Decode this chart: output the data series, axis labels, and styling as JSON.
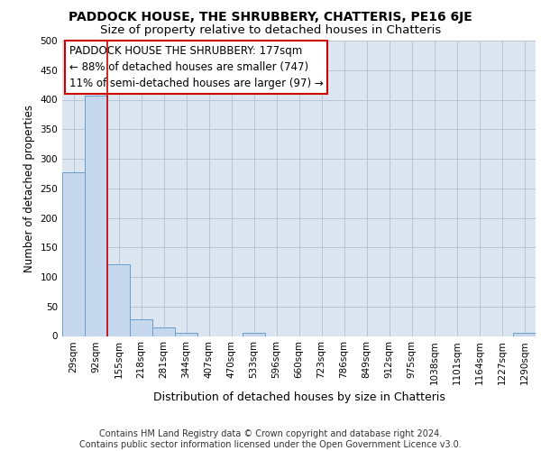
{
  "title": "PADDOCK HOUSE, THE SHRUBBERY, CHATTERIS, PE16 6JE",
  "subtitle": "Size of property relative to detached houses in Chatteris",
  "xlabel": "Distribution of detached houses by size in Chatteris",
  "ylabel": "Number of detached properties",
  "categories": [
    "29sqm",
    "92sqm",
    "155sqm",
    "218sqm",
    "281sqm",
    "344sqm",
    "407sqm",
    "470sqm",
    "533sqm",
    "596sqm",
    "660sqm",
    "723sqm",
    "786sqm",
    "849sqm",
    "912sqm",
    "975sqm",
    "1038sqm",
    "1101sqm",
    "1164sqm",
    "1227sqm",
    "1290sqm"
  ],
  "values": [
    277,
    407,
    121,
    28,
    14,
    5,
    0,
    0,
    5,
    0,
    0,
    0,
    0,
    0,
    0,
    0,
    0,
    0,
    0,
    0,
    5
  ],
  "bar_color": "#c5d8ed",
  "bar_edge_color": "#6a9ec9",
  "ylim": [
    0,
    500
  ],
  "yticks": [
    0,
    50,
    100,
    150,
    200,
    250,
    300,
    350,
    400,
    450,
    500
  ],
  "grid_color": "#b0bfd0",
  "background_color": "#dce6f1",
  "property_line_index": 2,
  "annotation_line1": "PADDOCK HOUSE THE SHRUBBERY: 177sqm",
  "annotation_line2": "← 88% of detached houses are smaller (747)",
  "annotation_line3": "11% of semi-detached houses are larger (97) →",
  "annotation_box_color": "#ffffff",
  "annotation_box_edge": "#cc0000",
  "property_line_color": "#cc0000",
  "footer_line1": "Contains HM Land Registry data © Crown copyright and database right 2024.",
  "footer_line2": "Contains public sector information licensed under the Open Government Licence v3.0.",
  "title_fontsize": 10,
  "subtitle_fontsize": 9.5,
  "annotation_fontsize": 8.5,
  "footer_fontsize": 7,
  "xlabel_fontsize": 9,
  "ylabel_fontsize": 8.5,
  "tick_fontsize": 7.5
}
